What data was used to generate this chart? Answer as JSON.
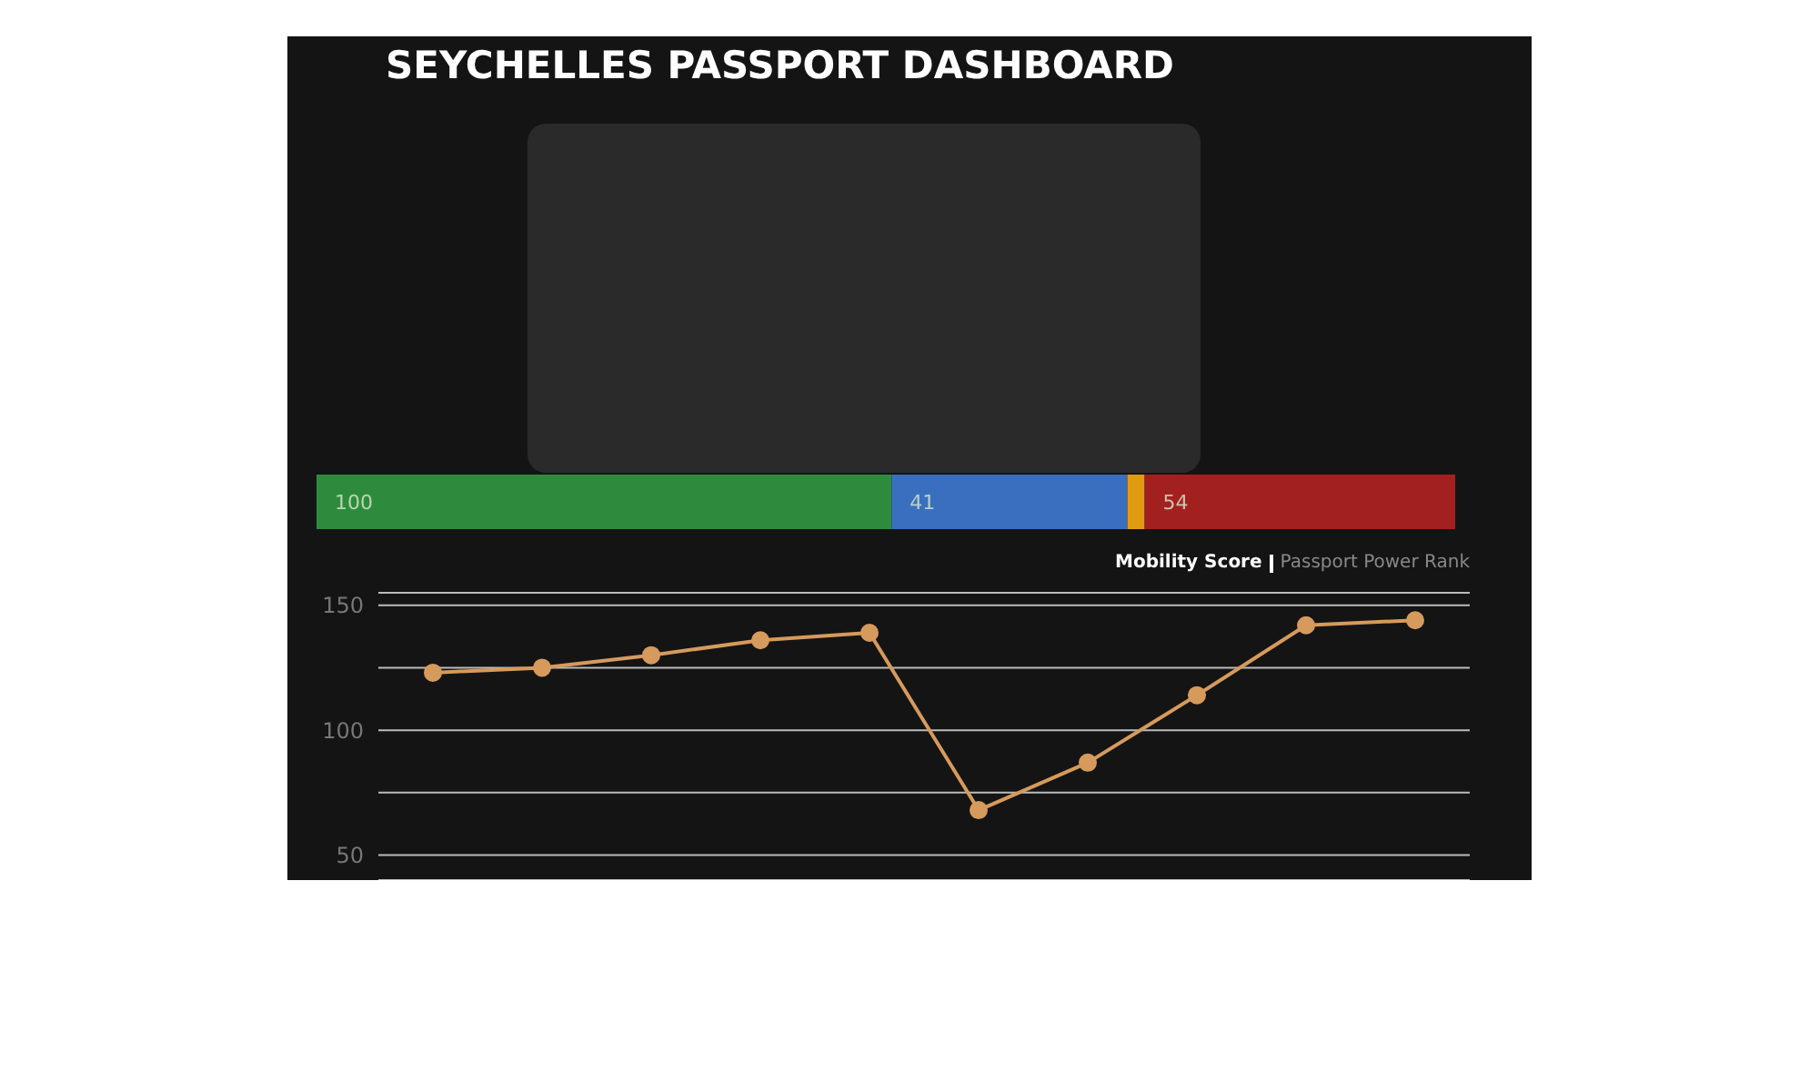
{
  "chart_data": [
    {
      "type": "bar",
      "title": "SEYCHELLES PASSPORT DASHBOARD",
      "orientation": "horizontal",
      "stacked": true,
      "categories": [
        null
      ],
      "series": [
        {
          "color": "#2e8b3e",
          "values": [
            100
          ],
          "value_labels": [
            "100"
          ]
        },
        {
          "color": "#3a6fc0",
          "values": [
            41
          ],
          "value_labels": [
            "41"
          ]
        },
        {
          "color": "#e09a10",
          "values": [
            3
          ],
          "value_labels": [
            null
          ]
        },
        {
          "color": "#a32020",
          "values": [
            54
          ],
          "value_labels": [
            "54"
          ]
        }
      ],
      "legend": false
    },
    {
      "type": "line",
      "categories": [
        null,
        null,
        null,
        null,
        null,
        null,
        null,
        null,
        null,
        null
      ],
      "series": [
        {
          "color": "#d69a5c",
          "values": [
            123,
            125,
            130,
            136,
            139,
            68,
            87,
            114,
            142,
            144
          ]
        }
      ],
      "ylim": [
        40,
        155
      ],
      "yticks": [
        50,
        {
          "value": 75,
          "label": null
        },
        100,
        {
          "value": 125,
          "label": null
        },
        150
      ],
      "grid": "y",
      "marker": "circle",
      "tick_labels": "y",
      "legend": false,
      "annotations": [
        "Mobility Score",
        "Passport Power Rank"
      ]
    }
  ]
}
